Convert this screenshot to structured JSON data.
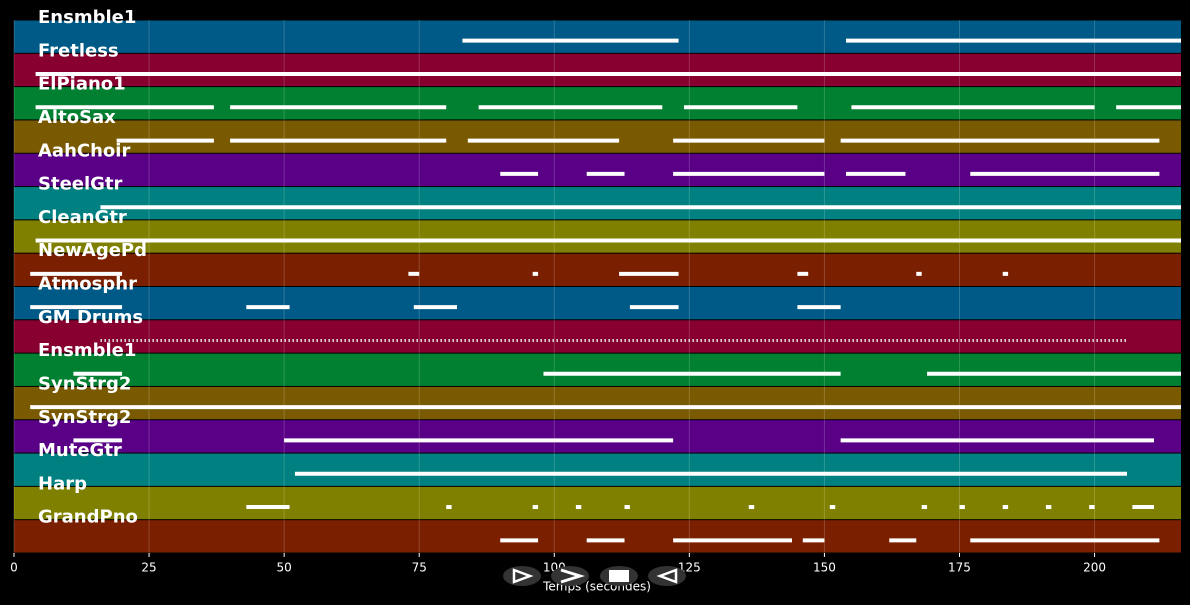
{
  "chart_data": {
    "type": "piano-roll",
    "xlabel": "Temps (secondes)",
    "xlim": [
      0,
      216
    ],
    "xticks": [
      0,
      25,
      50,
      75,
      100,
      125,
      150,
      175,
      200
    ],
    "grid": true,
    "tracks": [
      {
        "name": "Ensmble1",
        "color": "#005a87",
        "segments": [
          [
            83,
            123
          ],
          [
            154,
            216
          ]
        ]
      },
      {
        "name": "Fretless",
        "color": "#870030",
        "segments": [
          [
            4,
            216
          ]
        ]
      },
      {
        "name": "ElPiano1",
        "color": "#008030",
        "segments": [
          [
            4,
            37
          ],
          [
            40,
            80
          ],
          [
            86,
            120
          ],
          [
            124,
            145
          ],
          [
            155,
            200
          ],
          [
            204,
            216
          ]
        ]
      },
      {
        "name": "AltoSax",
        "color": "#7a5a00",
        "segments": [
          [
            19,
            37
          ],
          [
            40,
            80
          ],
          [
            84,
            112
          ],
          [
            122,
            150
          ],
          [
            153,
            212
          ]
        ]
      },
      {
        "name": "AahChoir",
        "color": "#5a0087",
        "segments": [
          [
            90,
            97
          ],
          [
            106,
            113
          ],
          [
            122,
            150
          ],
          [
            154,
            165
          ],
          [
            177,
            212
          ]
        ]
      },
      {
        "name": "SteelGtr",
        "color": "#008080",
        "segments": [
          [
            16,
            216
          ]
        ]
      },
      {
        "name": "CleanGtr",
        "color": "#808000",
        "segments": [
          [
            4,
            216
          ]
        ]
      },
      {
        "name": "NewAgePd",
        "color": "#7a2000",
        "segments": [
          [
            3,
            20
          ],
          [
            73,
            75
          ],
          [
            96,
            97
          ],
          [
            112,
            123
          ],
          [
            145,
            147
          ],
          [
            167,
            168
          ],
          [
            183,
            184
          ]
        ]
      },
      {
        "name": "Atmosphr",
        "color": "#005a87",
        "segments": [
          [
            3,
            20
          ],
          [
            43,
            51
          ],
          [
            74,
            82
          ],
          [
            114,
            123
          ],
          [
            145,
            153
          ]
        ]
      },
      {
        "name": "GM Drums",
        "color": "#870030",
        "segments": [
          [
            16,
            206
          ]
        ]
      },
      {
        "name": "Ensmble1",
        "color": "#008030",
        "segments": [
          [
            11,
            20
          ],
          [
            98,
            153
          ],
          [
            169,
            216
          ]
        ]
      },
      {
        "name": "SynStrg2",
        "color": "#7a5a00",
        "segments": [
          [
            3,
            216
          ]
        ]
      },
      {
        "name": "SynStrg2",
        "color": "#5a0087",
        "segments": [
          [
            11,
            20
          ],
          [
            50,
            122
          ],
          [
            153,
            211
          ]
        ]
      },
      {
        "name": "MuteGtr",
        "color": "#008080",
        "segments": [
          [
            52,
            206
          ]
        ]
      },
      {
        "name": "Harp",
        "color": "#808000",
        "segments": [
          [
            43,
            51
          ],
          [
            80,
            81
          ],
          [
            96,
            97
          ],
          [
            104,
            105
          ],
          [
            113,
            114
          ],
          [
            136,
            137
          ],
          [
            151,
            152
          ],
          [
            168,
            169
          ],
          [
            175,
            176
          ],
          [
            183,
            184
          ],
          [
            191,
            192
          ],
          [
            199,
            200
          ],
          [
            207,
            211
          ]
        ]
      },
      {
        "name": "GrandPno",
        "color": "#7a2000",
        "segments": [
          [
            90,
            97
          ],
          [
            106,
            113
          ],
          [
            122,
            144
          ],
          [
            146,
            150
          ],
          [
            162,
            167
          ],
          [
            177,
            212
          ]
        ]
      }
    ]
  }
}
